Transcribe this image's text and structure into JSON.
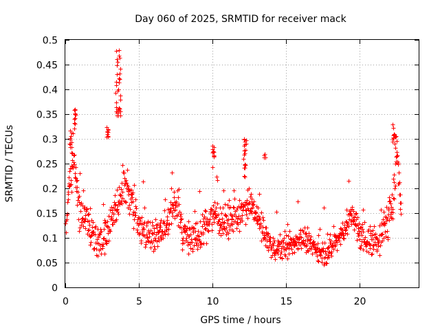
{
  "chart_data": {
    "type": "scatter",
    "title": "Day 060 of 2025, SRMTID for receiver mack",
    "xlabel": "GPS time / hours",
    "ylabel": "SRMTID / TECUs",
    "xlim": [
      0,
      24
    ],
    "ylim": [
      0,
      0.5
    ],
    "x_ticks": [
      0,
      5,
      10,
      15,
      20
    ],
    "x_tick_labels": [
      "0",
      "5",
      "10",
      "15",
      "20"
    ],
    "y_ticks": [
      0,
      0.05,
      0.1,
      0.15,
      0.2,
      0.25,
      0.3,
      0.35,
      0.4,
      0.45,
      0.5
    ],
    "y_tick_labels": [
      "0",
      "0.05",
      "0.1",
      "0.15",
      "0.2",
      "0.25",
      "0.3",
      "0.35",
      "0.4",
      "0.45",
      "0.5"
    ],
    "grid": true,
    "marker": "plus",
    "color": "#ff0000",
    "x_resolution_hours": 0.02,
    "trend": {
      "x": [
        0,
        0.3,
        0.6,
        0.9,
        1.2,
        1.6,
        2.0,
        2.5,
        3.0,
        3.5,
        4.0,
        4.5,
        5.0,
        5.5,
        6.0,
        6.5,
        7.0,
        7.5,
        8.0,
        9.0,
        10.0,
        11.0,
        12.0,
        12.5,
        13.0,
        13.5,
        14.0,
        15.0,
        16.0,
        17.0,
        17.5,
        18.0,
        19.0,
        19.5,
        20.0,
        20.5,
        21.0,
        21.5,
        22.0,
        22.3,
        22.5,
        22.8
      ],
      "y": [
        0.12,
        0.22,
        0.25,
        0.16,
        0.15,
        0.13,
        0.1,
        0.09,
        0.13,
        0.17,
        0.22,
        0.17,
        0.12,
        0.11,
        0.1,
        0.11,
        0.14,
        0.17,
        0.11,
        0.1,
        0.15,
        0.13,
        0.15,
        0.17,
        0.14,
        0.11,
        0.08,
        0.08,
        0.1,
        0.08,
        0.065,
        0.08,
        0.12,
        0.15,
        0.1,
        0.1,
        0.09,
        0.11,
        0.14,
        0.2,
        0.28,
        0.15
      ]
    },
    "spread": {
      "x": [
        0,
        3,
        4,
        6,
        10,
        14,
        17.5,
        20,
        22.5,
        22.8
      ],
      "y": [
        0.035,
        0.04,
        0.045,
        0.03,
        0.035,
        0.025,
        0.02,
        0.03,
        0.04,
        0.02
      ]
    },
    "bursts": [
      {
        "x": [
          3.4,
          3.75
        ],
        "y_range": [
          0.34,
          0.48
        ]
      },
      {
        "x": [
          2.8,
          2.9
        ],
        "y_range": [
          0.3,
          0.33
        ]
      },
      {
        "x": [
          0.3,
          0.5
        ],
        "y_range": [
          0.27,
          0.32
        ]
      },
      {
        "x": [
          0.6,
          0.7
        ],
        "y_range": [
          0.32,
          0.36
        ]
      },
      {
        "x": [
          12.1,
          12.3
        ],
        "y_range": [
          0.24,
          0.3
        ]
      },
      {
        "x": [
          10.0,
          10.1
        ],
        "y_range": [
          0.26,
          0.29
        ]
      },
      {
        "x": [
          13.5,
          13.6
        ],
        "y_range": [
          0.26,
          0.27
        ]
      },
      {
        "x": [
          22.2,
          22.5
        ],
        "y_range": [
          0.29,
          0.33
        ]
      }
    ],
    "point_count_approx": 1150
  }
}
